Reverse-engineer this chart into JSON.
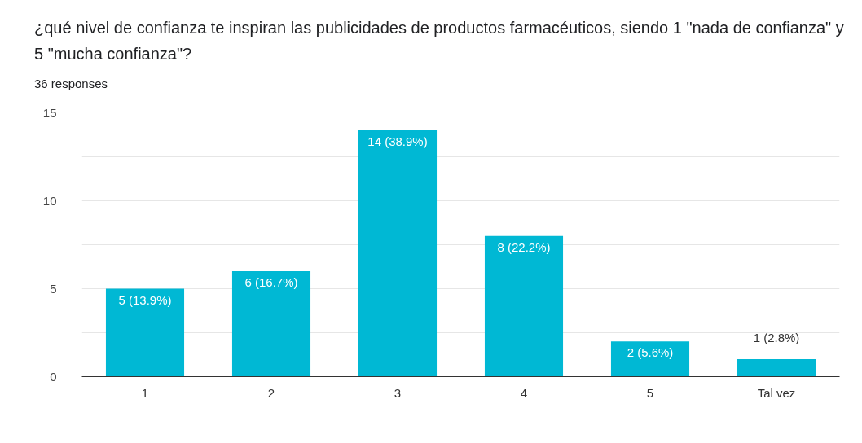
{
  "chart_data": {
    "type": "bar",
    "title": "¿qué nivel de confianza te inspiran las publicidades de productos farmacéuticos, siendo 1 \"nada de confianza\" y 5 \"mucha confianza\"?",
    "subtitle": "36 responses",
    "categories": [
      "1",
      "2",
      "3",
      "4",
      "5",
      "Tal vez"
    ],
    "values": [
      5,
      6,
      14,
      8,
      2,
      1
    ],
    "color": "#00b8d4",
    "value_labels": [
      "5 (13.9%)",
      "6 (16.7%)",
      "14 (38.9%)",
      "8 (22.2%)",
      "2 (5.6%)",
      "1 (2.8%)"
    ],
    "ylim": [
      0,
      15
    ],
    "yticks": [
      0,
      {
        "value": 2.5,
        "label": null
      },
      5,
      {
        "value": 7.5,
        "label": null
      },
      10,
      {
        "value": 12.5,
        "label": null
      },
      15
    ],
    "grid": "y"
  }
}
